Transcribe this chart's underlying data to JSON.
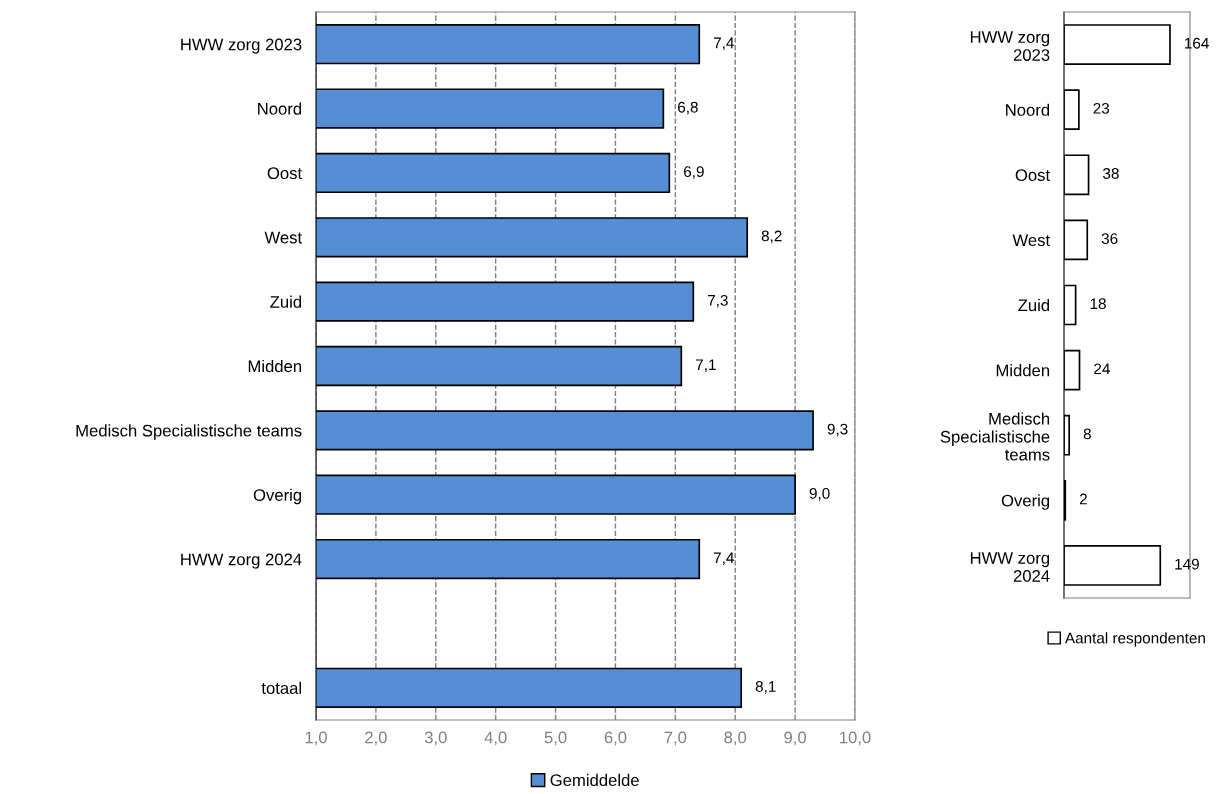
{
  "chart_data": [
    {
      "type": "bar",
      "orientation": "horizontal",
      "categories": [
        "HWW zorg 2023",
        "Noord",
        "Oost",
        "West",
        "Zuid",
        "Midden",
        "Medisch Specialistische teams",
        "Overig",
        "HWW zorg 2024",
        null,
        "totaal"
      ],
      "series": [
        {
          "name": "Gemiddelde",
          "color": "#558ed5",
          "values": [
            7.4,
            6.8,
            6.9,
            8.2,
            7.3,
            7.1,
            9.3,
            9.0,
            7.4,
            null,
            8.1
          ],
          "value_labels": [
            "7,4",
            "6,8",
            "6,9",
            "8,2",
            "7,3",
            "7,1",
            "9,3",
            "9,0",
            "7,4",
            null,
            "8,1"
          ]
        }
      ],
      "xlim": [
        1,
        10
      ],
      "xticks": [
        {
          "value": 1,
          "label": "1,0"
        },
        {
          "value": 2,
          "label": "2,0"
        },
        {
          "value": 3,
          "label": "3,0"
        },
        {
          "value": 4,
          "label": "4,0"
        },
        {
          "value": 5,
          "label": "5,0"
        },
        {
          "value": 6,
          "label": "6,0"
        },
        {
          "value": 7,
          "label": "7,0"
        },
        {
          "value": 8,
          "label": "8,0"
        },
        {
          "value": 9,
          "label": "9,0"
        },
        {
          "value": 10,
          "label": "10,0"
        }
      ],
      "grid": "x",
      "line_style": "dashed",
      "legend": "bottom"
    },
    {
      "type": "bar",
      "orientation": "horizontal",
      "categories": [
        "HWW zorg\n2023",
        "Noord",
        "Oost",
        "West",
        "Zuid",
        "Midden",
        "Medisch\nSpecialistische\nteams",
        "Overig",
        "HWW zorg\n2024"
      ],
      "series": [
        {
          "name": "Aantal respondenten",
          "color": "#ffffff",
          "values": [
            164,
            23,
            38,
            36,
            18,
            24,
            8,
            2,
            149
          ]
        }
      ],
      "xlim": [
        0,
        195
      ],
      "data_labels": true,
      "tick_labels": "y",
      "legend": "bottom"
    }
  ]
}
